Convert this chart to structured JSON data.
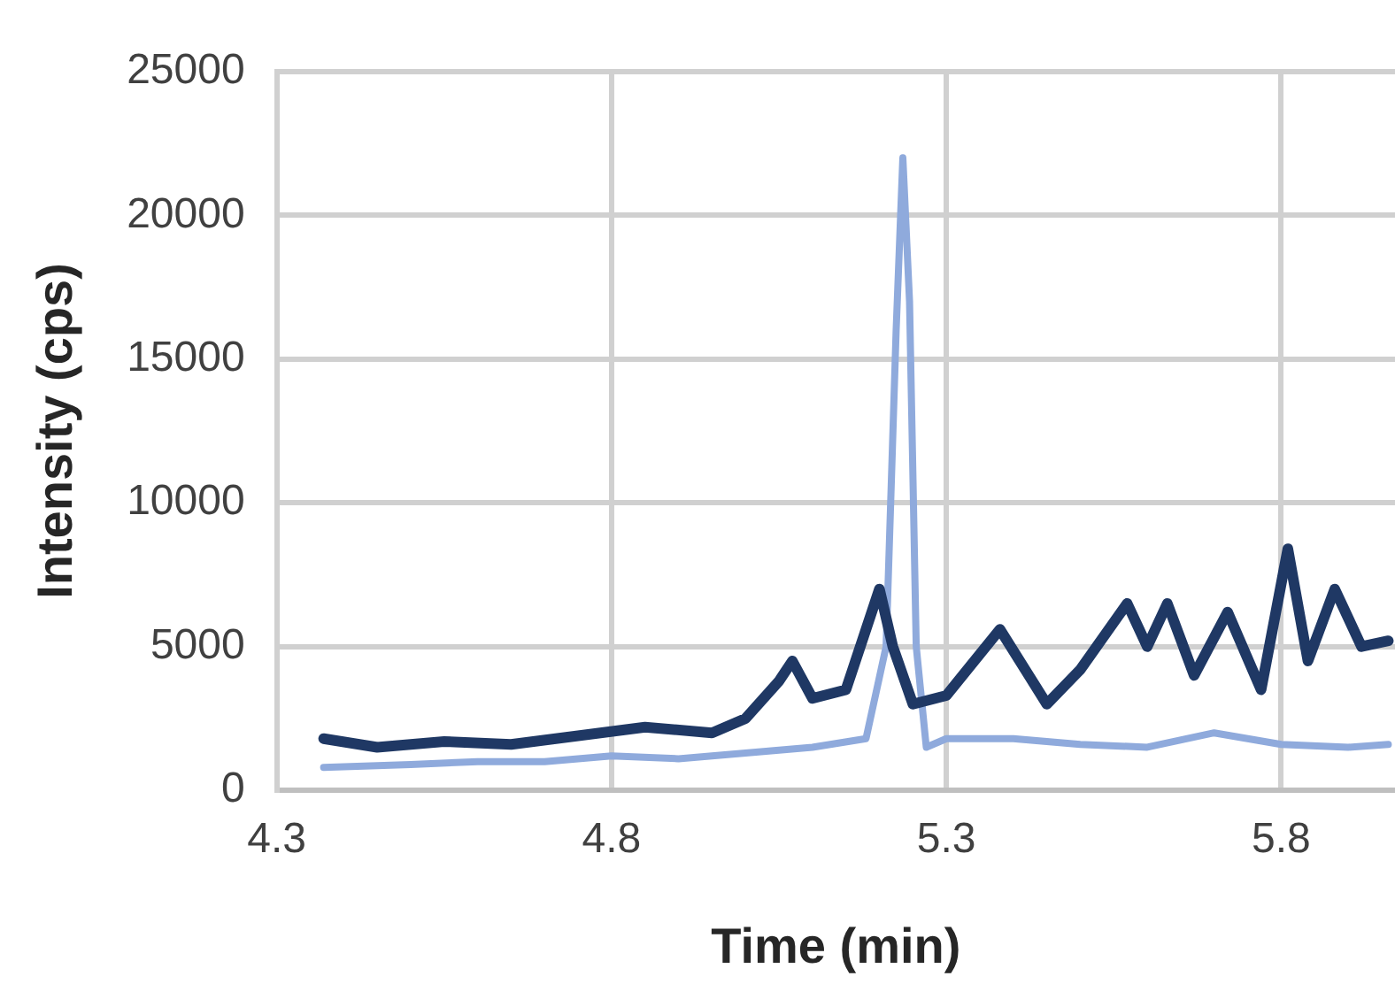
{
  "chart_data": {
    "type": "line",
    "xlabel": "Time (min)",
    "ylabel": "Intensity (cps)",
    "xlim": [
      4.3,
      5.97
    ],
    "xticks": [
      {
        "value": 4.3,
        "label": "4.3"
      },
      {
        "value": 4.8,
        "label": "4.8"
      },
      {
        "value": 5.3,
        "label": "5.3"
      },
      {
        "value": 5.8,
        "label": "5.8"
      }
    ],
    "ylim": [
      0,
      25000
    ],
    "yticks": [
      0,
      5000,
      10000,
      15000,
      20000,
      25000
    ],
    "grid": true,
    "legend": false,
    "marker": "none",
    "line_style": "solid",
    "series": [
      {
        "color": "#1f3864",
        "x": [
          4.37,
          4.45,
          4.55,
          4.65,
          4.75,
          4.85,
          4.95,
          5.0,
          5.05,
          5.07,
          5.1,
          5.15,
          5.2,
          5.22,
          5.25,
          5.3,
          5.38,
          5.45,
          5.5,
          5.57,
          5.6,
          5.63,
          5.67,
          5.72,
          5.77,
          5.81,
          5.84,
          5.88,
          5.92,
          5.96
        ],
        "values": [
          1800,
          1500,
          1700,
          1600,
          1900,
          2200,
          2000,
          2500,
          3800,
          4500,
          3200,
          3500,
          7000,
          5000,
          3000,
          3300,
          5600,
          3000,
          4200,
          6500,
          5000,
          6500,
          4000,
          6200,
          3500,
          8400,
          4500,
          7000,
          5000,
          5200
        ]
      },
      {
        "color": "#8faadc",
        "x": [
          4.37,
          4.5,
          4.6,
          4.7,
          4.8,
          4.9,
          5.0,
          5.1,
          5.18,
          5.21,
          5.225,
          5.235,
          5.245,
          5.255,
          5.27,
          5.3,
          5.4,
          5.5,
          5.6,
          5.7,
          5.8,
          5.9,
          5.96
        ],
        "values": [
          800,
          900,
          1000,
          1000,
          1200,
          1100,
          1300,
          1500,
          1800,
          5000,
          16000,
          22000,
          17000,
          5000,
          1500,
          1800,
          1800,
          1600,
          1500,
          2000,
          1600,
          1500,
          1600
        ]
      }
    ]
  }
}
